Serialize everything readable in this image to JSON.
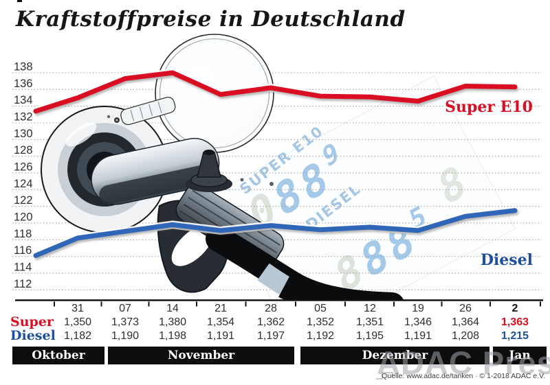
{
  "title": "Kraftstoffpreise in Deutschland",
  "source_line": "Quelle: www.adac.de/tanken · © 1-2018 ADAC e.V.",
  "press_watermark": "ADAC Presse",
  "colors": {
    "super_red": "#da0e22",
    "diesel_line_blue": "#2f66b8",
    "diesel_text_blue": "#1d4f9e",
    "band_black": "#0d0d0d",
    "grid_gray": "#9e9e9e",
    "axis_black": "#141414",
    "digits_blue": "#a5c9e8",
    "digits_ghost": "#dde3da",
    "watermark_gray": "#9fa4a9"
  },
  "chart_data": {
    "type": "line",
    "title": "Kraftstoffpreise in Deutschland",
    "x_tick_labels": [
      "31",
      "07",
      "14",
      "21",
      "28",
      "05",
      "12",
      "19",
      "26",
      "2"
    ],
    "month_groups": [
      {
        "label": "Oktober",
        "columns": [
          "31"
        ]
      },
      {
        "label": "November",
        "columns": [
          "07",
          "14",
          "21",
          "28"
        ]
      },
      {
        "label": "Dezember",
        "columns": [
          "05",
          "12",
          "19",
          "26"
        ]
      },
      {
        "label": "Jan",
        "columns": [
          "2"
        ]
      }
    ],
    "ylim": [
      112,
      138
    ],
    "ytick_step": 2,
    "grid": "horizontal-dotted",
    "legend_position": "labels-at-line-end-right",
    "series": [
      {
        "name": "Super E10",
        "row_label": "Super",
        "values": [
          135.0,
          137.3,
          138.0,
          135.4,
          136.2,
          135.2,
          135.1,
          134.6,
          136.4,
          136.3
        ],
        "table_row": [
          "1,350",
          "1,373",
          "1,380",
          "1,354",
          "1,362",
          "1,352",
          "1,351",
          "1,346",
          "1,364",
          "1,363"
        ],
        "lead_in_value": 133.4,
        "line_color": "#da0e22",
        "text_color": "#da0e22"
      },
      {
        "name": "Diesel",
        "row_label": "Diesel",
        "values": [
          118.2,
          119.0,
          119.8,
          119.1,
          119.7,
          119.2,
          119.5,
          119.1,
          120.8,
          121.5
        ],
        "table_row": [
          "1,182",
          "1,190",
          "1,198",
          "1,191",
          "1,197",
          "1,192",
          "1,195",
          "1,191",
          "1,208",
          "1,215"
        ],
        "lead_in_value": 116.1,
        "line_color": "#2f66b8",
        "text_color": "#1d4f9e"
      }
    ]
  },
  "display_watermark": {
    "super_label": "SUPER E10",
    "super_digits_ghost": "0",
    "super_digits": "88",
    "super_digits_small": "9",
    "diesel_label": "DIESEL",
    "diesel_digits_ghost": "8",
    "diesel_digits": "88",
    "diesel_digits_small": "5",
    "ghost_extra": "8"
  }
}
